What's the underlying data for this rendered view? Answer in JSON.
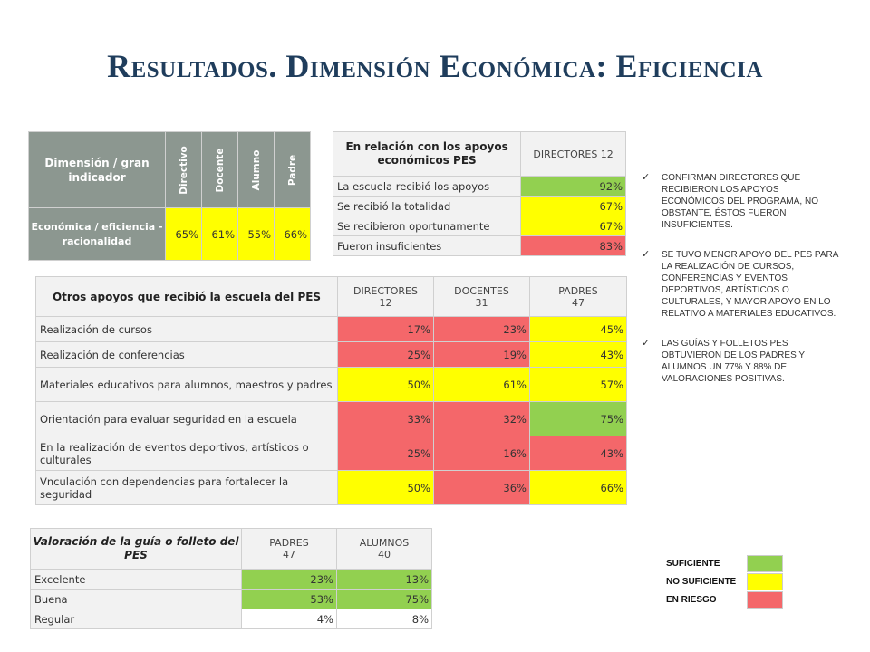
{
  "title": "Resultados. Dimensión Económica: Eficiencia",
  "table1": {
    "header_main": "Dimensión / gran indicador",
    "cols": [
      "Directivo",
      "Docente",
      "Alumno",
      "Padre"
    ],
    "row_label": "Económica / eficiencia - racionalidad",
    "values": [
      "65%",
      "61%",
      "55%",
      "66%"
    ]
  },
  "table2": {
    "header": "En relación con los apoyos económicos PES",
    "col_header": "DIRECTORES 12",
    "rows": [
      {
        "label": "La escuela recibió los apoyos",
        "value": "92%",
        "status": "suficiente"
      },
      {
        "label": "Se recibió la totalidad",
        "value": "67%",
        "status": "no suficiente"
      },
      {
        "label": "Se recibieron oportunamente",
        "value": "67%",
        "status": "no suficiente"
      },
      {
        "label": "Fueron insuficientes",
        "value": "83%",
        "status": "en riesgo"
      }
    ]
  },
  "table3": {
    "header": "Otros apoyos que recibió la escuela del PES",
    "cols": [
      "DIRECTORES 12",
      "DOCENTES 31",
      "PADRES 47"
    ],
    "rows": [
      {
        "label": "Realización de cursos",
        "values": [
          "17%",
          "23%",
          "45%"
        ]
      },
      {
        "label": "Realización de conferencias",
        "values": [
          "25%",
          "19%",
          "43%"
        ]
      },
      {
        "label": "Materiales educativos para alumnos, maestros y padres",
        "values": [
          "50%",
          "61%",
          "57%"
        ]
      },
      {
        "label": "Orientación para evaluar seguridad en la escuela",
        "values": [
          "33%",
          "32%",
          "75%"
        ]
      },
      {
        "label": "En la realización de eventos deportivos, artísticos o culturales",
        "values": [
          "25%",
          "16%",
          "43%"
        ]
      },
      {
        "label": "Vnculación con dependencias para fortalecer la seguridad",
        "values": [
          "50%",
          "36%",
          "66%"
        ]
      }
    ]
  },
  "table4": {
    "header": "Valoración de la guía o folleto del PES",
    "cols": [
      "PADRES 47",
      "ALUMNOS 40"
    ],
    "rows": [
      {
        "label": "Excelente",
        "values": [
          "23%",
          "13%"
        ]
      },
      {
        "label": "Buena",
        "values": [
          "53%",
          "75%"
        ]
      },
      {
        "label": "Regular",
        "values": [
          "4%",
          "8%"
        ]
      }
    ]
  },
  "notes": [
    "CONFIRMAN DIRECTORES QUE RECIBIERON LOS APOYOS ECONÓMICOS DEL PROGRAMA, NO OBSTANTE, ÉSTOS FUERON INSUFICIENTES.",
    "SE TUVO MENOR APOYO DEL PES PARA LA REALIZACIÓN DE CURSOS, CONFERENCIAS Y EVENTOS DEPORTIVOS, ARTÍSTICOS O CULTURALES, Y MAYOR APOYO EN LO RELATIVO A MATERIALES EDUCATIVOS.",
    "LAS GUÍAS Y FOLLETOS PES OBTUVIERON DE LOS PADRES Y ALUMNOS UN 77% Y 88% DE VALORACIONES POSITIVAS."
  ],
  "legend": [
    {
      "label": "SUFICIENTE",
      "color": "#92d050"
    },
    {
      "label": "NO SUFICIENTE",
      "color": "#ffff00"
    },
    {
      "label": "EN RIESGO",
      "color": "#f4676a"
    }
  ]
}
